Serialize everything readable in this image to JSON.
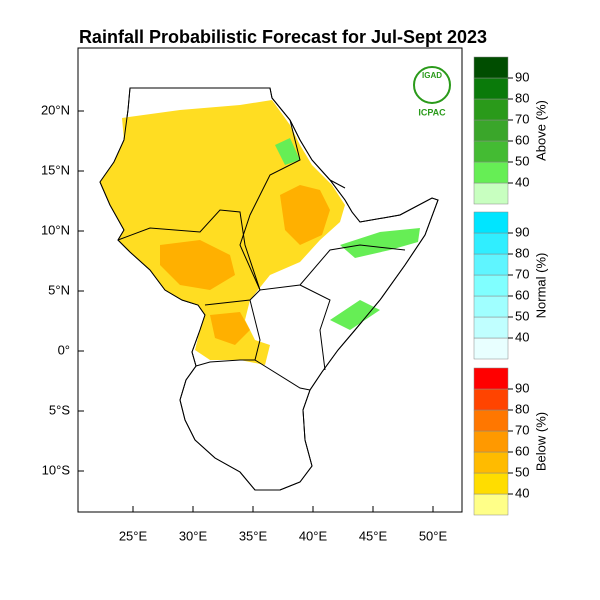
{
  "title": "Rainfall Probabilistic Forecast for Jul-Sept 2023",
  "map": {
    "lat_ticks": [
      "20°N",
      "15°N",
      "10°N",
      "5°N",
      "0°",
      "5°S",
      "10°S"
    ],
    "lon_ticks": [
      "25°E",
      "30°E",
      "35°E",
      "40°E",
      "45°E",
      "50°E"
    ]
  },
  "logo": {
    "name": "IGAD",
    "org": "ICPAC"
  },
  "colorbars": [
    {
      "label": "Above (%)",
      "ticks": [
        40,
        50,
        60,
        70,
        80,
        90
      ],
      "colors": [
        "#c8ffc0",
        "#66ee55",
        "#44bb33",
        "#3aa62a",
        "#2a9a1a",
        "#0a7a0a",
        "#004d00"
      ]
    },
    {
      "label": "Normal (%)",
      "ticks": [
        40,
        50,
        60,
        70,
        80,
        90
      ],
      "colors": [
        "#e8ffff",
        "#c0ffff",
        "#a0ffff",
        "#80ffff",
        "#5ff5ff",
        "#30eeff",
        "#00e5ff"
      ]
    },
    {
      "label": "Below (%)",
      "ticks": [
        40,
        50,
        60,
        70,
        80,
        90
      ],
      "colors": [
        "#ffff88",
        "#ffdd00",
        "#ffbb00",
        "#ff9900",
        "#ff7700",
        "#ff4400",
        "#ff0000"
      ]
    }
  ]
}
